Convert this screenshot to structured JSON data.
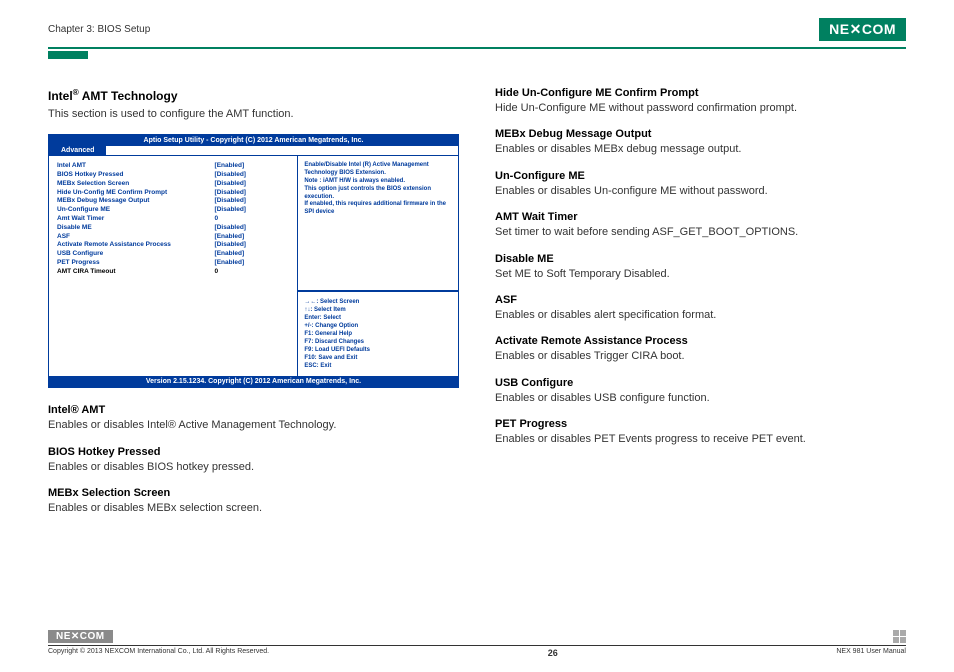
{
  "header": {
    "chapter": "Chapter 3: BIOS Setup",
    "logo": "NE COM"
  },
  "section": {
    "title_prefix": "Intel",
    "title_suffix": " AMT Technology",
    "desc": "This section is used to configure the AMT function."
  },
  "bios": {
    "title": "Aptio Setup Utility - Copyright (C) 2012 American Megatrends, Inc.",
    "tab": "Advanced",
    "rows": [
      {
        "label": "Intel AMT",
        "val": "[Enabled]",
        "cls": ""
      },
      {
        "label": "BIOS Hotkey Pressed",
        "val": "[Disabled]",
        "cls": ""
      },
      {
        "label": "MEBx Selection Screen",
        "val": "[Disabled]",
        "cls": ""
      },
      {
        "label": "Hide Un-Config ME Confirm Prompt",
        "val": "[Disabled]",
        "cls": ""
      },
      {
        "label": "MEBx Debug Message Output",
        "val": "[Disabled]",
        "cls": ""
      },
      {
        "label": "Un-Configure ME",
        "val": "[Disabled]",
        "cls": ""
      },
      {
        "label": "Amt Wait Timer",
        "val": "0",
        "cls": ""
      },
      {
        "label": "Disable ME",
        "val": "[Disabled]",
        "cls": ""
      },
      {
        "label": "ASF",
        "val": "[Enabled]",
        "cls": ""
      },
      {
        "label": "Activate Remote Assistance Process",
        "val": "[Disabled]",
        "cls": ""
      },
      {
        "label": "USB Configure",
        "val": "[Enabled]",
        "cls": ""
      },
      {
        "label": "PET Progress",
        "val": "[Enabled]",
        "cls": ""
      },
      {
        "label": "AMT CIRA Timeout",
        "val": "0",
        "cls": "black"
      }
    ],
    "help": "Enable/Disable Intel (R) Active Management Technology BIOS Extension.\nNote : iAMT H/W is always enabled.\nThis option just controls the BIOS extension execution.\nIf enabled, this requires additional firmware in the SPI device",
    "keys": [
      "→←: Select Screen",
      "↑↓: Select Item",
      "Enter: Select",
      "+/-: Change Option",
      "F1: General Help",
      "F7: Discard Changes",
      "F9: Load UEFI Defaults",
      "F10: Save and Exit",
      "ESC: Exit"
    ],
    "footer": "Version 2.15.1234. Copyright (C) 2012 American Megatrends, Inc."
  },
  "left_blocks": [
    {
      "title": "Intel® AMT",
      "text": "Enables or disables Intel® Active Management Technology."
    },
    {
      "title": "BIOS Hotkey Pressed",
      "text": "Enables or disables BIOS hotkey pressed."
    },
    {
      "title": "MEBx Selection Screen",
      "text": "Enables or disables MEBx selection screen."
    }
  ],
  "right_blocks": [
    {
      "title": "Hide Un-Configure ME Confirm Prompt",
      "text": "Hide Un-Configure ME without password confirmation prompt."
    },
    {
      "title": "MEBx Debug Message Output",
      "text": "Enables or disables MEBx debug message output."
    },
    {
      "title": "Un-Configure ME",
      "text": "Enables or disables Un-configure ME without password."
    },
    {
      "title": "AMT Wait Timer",
      "text": "Set timer to wait before sending ASF_GET_BOOT_OPTIONS."
    },
    {
      "title": "Disable ME",
      "text": "Set ME to Soft Temporary Disabled."
    },
    {
      "title": "ASF",
      "text": "Enables or disables alert specification format."
    },
    {
      "title": "Activate Remote Assistance Process",
      "text": "Enables or disables Trigger CIRA boot."
    },
    {
      "title": "USB Configure",
      "text": "Enables or disables USB configure function."
    },
    {
      "title": "PET Progress",
      "text": "Enables or disables PET Events progress to receive PET event."
    }
  ],
  "footer": {
    "copyright": "Copyright © 2013 NEXCOM International Co., Ltd. All Rights Reserved.",
    "page": "26",
    "manual": "NEX 981 User Manual"
  }
}
